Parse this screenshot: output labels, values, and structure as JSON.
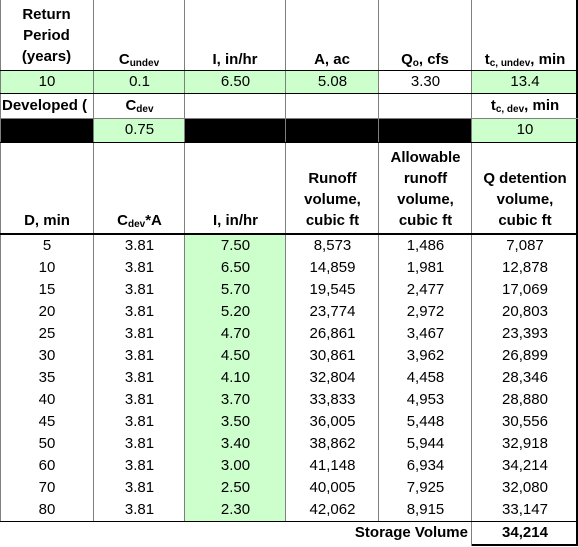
{
  "header": {
    "return_period_l1": "Return",
    "return_period_l2": "Period",
    "return_period_l3": "(years)",
    "c_undev_main": "C",
    "c_undev_sub": "undev",
    "i_in_hr": "I, in/hr",
    "a_ac": "A, ac",
    "qo_main": "Q",
    "qo_sub": "o",
    "qo_tail": ", cfs",
    "tc_undev_main": "t",
    "tc_undev_sub": "c, undev",
    "tc_undev_tail": ", min"
  },
  "inputs": {
    "return_period": "10",
    "c_undev": "0.1",
    "i": "6.50",
    "a": "5.08",
    "qo": "3.30",
    "tc_undev": "13.4"
  },
  "developed": {
    "label": "Developed (",
    "c_dev_main": "C",
    "c_dev_sub": "dev",
    "c_dev_value": "0.75",
    "tc_dev_main": "t",
    "tc_dev_sub": "c, dev",
    "tc_dev_tail": ", min",
    "tc_dev_value": "10"
  },
  "table": {
    "col_d": "D, min",
    "col_cdev_main": "C",
    "col_cdev_sub": "dev",
    "col_cdev_tail": "*A",
    "col_i": "I, in/hr",
    "col_runoff_l1": "Runoff",
    "col_runoff_l2": "volume,",
    "col_runoff_l3": "cubic ft",
    "col_allow_l1": "Allowable",
    "col_allow_l2": "runoff",
    "col_allow_l3": "volume,",
    "col_allow_l4": "cubic ft",
    "col_qdet_l1": "Q detention",
    "col_qdet_l2": "volume,",
    "col_qdet_l3": "cubic ft",
    "rows": [
      {
        "d": "5",
        "ca": "3.81",
        "i": "7.50",
        "runoff": "8,573",
        "allow": "1,486",
        "qdet": "7,087"
      },
      {
        "d": "10",
        "ca": "3.81",
        "i": "6.50",
        "runoff": "14,859",
        "allow": "1,981",
        "qdet": "12,878"
      },
      {
        "d": "15",
        "ca": "3.81",
        "i": "5.70",
        "runoff": "19,545",
        "allow": "2,477",
        "qdet": "17,069"
      },
      {
        "d": "20",
        "ca": "3.81",
        "i": "5.20",
        "runoff": "23,774",
        "allow": "2,972",
        "qdet": "20,803"
      },
      {
        "d": "25",
        "ca": "3.81",
        "i": "4.70",
        "runoff": "26,861",
        "allow": "3,467",
        "qdet": "23,393"
      },
      {
        "d": "30",
        "ca": "3.81",
        "i": "4.50",
        "runoff": "30,861",
        "allow": "3,962",
        "qdet": "26,899"
      },
      {
        "d": "35",
        "ca": "3.81",
        "i": "4.10",
        "runoff": "32,804",
        "allow": "4,458",
        "qdet": "28,346"
      },
      {
        "d": "40",
        "ca": "3.81",
        "i": "3.70",
        "runoff": "33,833",
        "allow": "4,953",
        "qdet": "28,880"
      },
      {
        "d": "45",
        "ca": "3.81",
        "i": "3.50",
        "runoff": "36,005",
        "allow": "5,448",
        "qdet": "30,556"
      },
      {
        "d": "50",
        "ca": "3.81",
        "i": "3.40",
        "runoff": "38,862",
        "allow": "5,944",
        "qdet": "32,918"
      },
      {
        "d": "60",
        "ca": "3.81",
        "i": "3.00",
        "runoff": "41,148",
        "allow": "6,934",
        "qdet": "34,214"
      },
      {
        "d": "70",
        "ca": "3.81",
        "i": "2.50",
        "runoff": "40,005",
        "allow": "7,925",
        "qdet": "32,080"
      },
      {
        "d": "80",
        "ca": "3.81",
        "i": "2.30",
        "runoff": "42,062",
        "allow": "8,915",
        "qdet": "33,147"
      }
    ]
  },
  "storage": {
    "label": "Storage Volume",
    "value": "34,214"
  }
}
